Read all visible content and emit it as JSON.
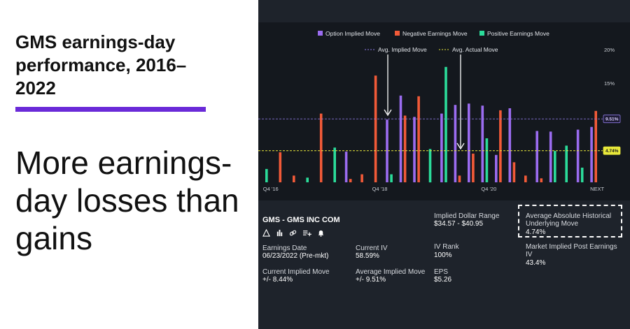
{
  "left": {
    "title": "GMS earnings-day performance, 2016–2022",
    "headline": "More earnings-day losses than gains"
  },
  "colors": {
    "option_implied": "#9b6cf0",
    "negative": "#f25a38",
    "positive": "#2bdc9a",
    "avg_implied_line": "#8f7be8",
    "avg_actual_line": "#e8e83a"
  },
  "chart_data": {
    "type": "bar",
    "legend": [
      "Option Implied Move",
      "Negative Earnings Move",
      "Positive Earnings Move"
    ],
    "reference_lines": [
      {
        "name": "Avg. Implied Move",
        "value": 9.51,
        "label": "9.51%"
      },
      {
        "name": "Avg. Actual Move",
        "value": 4.74,
        "label": "4.74%"
      }
    ],
    "x_tick_labels": [
      {
        "label": "Q4 '16",
        "index": 0
      },
      {
        "label": "Q4 '18",
        "index": 8
      },
      {
        "label": "Q4 '20",
        "index": 16
      },
      {
        "label": "NEXT",
        "index": 24
      }
    ],
    "yticks": [
      {
        "value": 20,
        "label": "20%"
      },
      {
        "value": 15,
        "label": "15%"
      }
    ],
    "ylim": [
      0,
      20
    ],
    "legend_position": "top",
    "groups": [
      {
        "implied": null,
        "negative": null,
        "positive": 2.0
      },
      {
        "implied": null,
        "negative": 4.5,
        "positive": null
      },
      {
        "implied": null,
        "negative": 1.0,
        "positive": null
      },
      {
        "implied": null,
        "negative": null,
        "positive": 0.7
      },
      {
        "implied": null,
        "negative": 10.3,
        "positive": null
      },
      {
        "implied": null,
        "negative": null,
        "positive": 5.2
      },
      {
        "implied": 4.6,
        "negative": 0.5,
        "positive": null
      },
      {
        "implied": null,
        "negative": 1.2,
        "positive": null
      },
      {
        "implied": null,
        "negative": 16.0,
        "positive": null
      },
      {
        "implied": 9.4,
        "negative": null,
        "positive": 1.2
      },
      {
        "implied": 13.0,
        "negative": 10.0,
        "positive": null
      },
      {
        "implied": 9.8,
        "negative": 12.9,
        "positive": null
      },
      {
        "implied": null,
        "negative": null,
        "positive": 5.0
      },
      {
        "implied": 10.3,
        "negative": null,
        "positive": 17.3
      },
      {
        "implied": 11.6,
        "negative": 1.0,
        "positive": null
      },
      {
        "implied": 11.8,
        "negative": 4.3,
        "positive": null
      },
      {
        "implied": 11.5,
        "negative": null,
        "positive": 6.6
      },
      {
        "implied": 4.1,
        "negative": 10.8,
        "positive": null
      },
      {
        "implied": 11.1,
        "negative": 3.0,
        "positive": null
      },
      {
        "implied": null,
        "negative": 1.0,
        "positive": null
      },
      {
        "implied": 7.7,
        "negative": 0.6,
        "positive": null
      },
      {
        "implied": 7.6,
        "negative": null,
        "positive": 4.7
      },
      {
        "implied": null,
        "negative": null,
        "positive": 5.5
      },
      {
        "implied": 7.9,
        "negative": null,
        "positive": 2.2
      },
      {
        "implied": 8.3,
        "negative": 10.7,
        "positive": null
      }
    ]
  },
  "info": {
    "ticker": "GMS - GMS INC COM",
    "implied_dollar_range_label": "Implied Dollar Range",
    "implied_dollar_range_value": "$34.57 - $40.95",
    "avg_abs_hist_label": "Average Absolute Historical Underlying Move",
    "avg_abs_hist_value": "4.74%",
    "earnings_date_label": "Earnings Date",
    "earnings_date_value": "06/23/2022 (Pre-mkt)",
    "current_iv_label": "Current IV",
    "current_iv_value": "58.59%",
    "iv_rank_label": "IV Rank",
    "iv_rank_value": "100%",
    "market_implied_label": "Market Implied Post Earnings IV",
    "market_implied_value": "43.4%",
    "current_implied_move_label": "Current Implied Move",
    "current_implied_move_value": "+/- 8.44%",
    "average_implied_move_label": "Average Implied Move",
    "average_implied_move_value": "+/- 9.51%",
    "eps_label": "EPS",
    "eps_value": "$5.26",
    "icons": [
      "triangle-alert-icon",
      "bar-chart-icon",
      "link-icon",
      "add-list-icon",
      "bell-icon"
    ]
  }
}
